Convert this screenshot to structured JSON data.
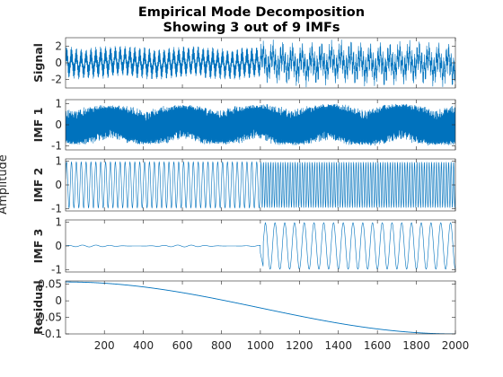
{
  "chart_data": {
    "type": "line",
    "title": "Empirical Mode Decomposition",
    "subtitle": "Showing 3 out of 9 IMFs",
    "ylabel": "Amplitude",
    "x_ticks": [
      200,
      400,
      600,
      800,
      1000,
      1200,
      1400,
      1600,
      1800,
      2000
    ],
    "xlim": [
      1,
      2000
    ],
    "line_color": "#0072bd",
    "grid": false,
    "panels": [
      {
        "name": "Signal",
        "ylim": [
          -3,
          3
        ],
        "yticks": [
          -2,
          0,
          2
        ],
        "description_points": {
          "segment_1": {
            "x_range": [
              1,
              1000
            ],
            "amplitude": 2.0
          },
          "segment_2": {
            "x_range": [
              1000,
              2000
            ],
            "amplitude": 3.0
          }
        }
      },
      {
        "name": "IMF 1",
        "ylim": [
          -1.2,
          1.2
        ],
        "yticks": [
          -1,
          0,
          1
        ],
        "description_points": {
          "segment_1": {
            "x_range": [
              1,
              1000
            ],
            "amplitude": 0.95
          },
          "segment_2": {
            "x_range": [
              1000,
              2000
            ],
            "amplitude": 1.0
          }
        }
      },
      {
        "name": "IMF 2",
        "ylim": [
          -1.1,
          1.1
        ],
        "yticks": [
          -1,
          0,
          1
        ],
        "description_points": {
          "segment_1": {
            "x_range": [
              1,
              1000
            ],
            "amplitude": 1.0,
            "cycles": 40
          },
          "segment_2": {
            "x_range": [
              1000,
              2000
            ],
            "amplitude": 1.0,
            "cycles": 80
          }
        }
      },
      {
        "name": "IMF 3",
        "ylim": [
          -1.1,
          1.1
        ],
        "yticks": [
          -1,
          0,
          1
        ],
        "description_points": {
          "segment_1": {
            "x_range": [
              1,
              1000
            ],
            "amplitude": 0.04
          },
          "segment_2": {
            "x_range": [
              1000,
              2000
            ],
            "amplitude": 1.0,
            "cycles": 20
          }
        }
      },
      {
        "name": "Residual",
        "ylim": [
          -0.1,
          0.06
        ],
        "yticks": [
          -0.1,
          -0.05,
          0,
          0.05
        ],
        "ytick_labels": [
          "-0.1",
          "-0.05",
          "0",
          "0.05"
        ],
        "curve": {
          "start": 0.057,
          "end": -0.1,
          "x_start": 1,
          "x_end": 2000
        }
      }
    ]
  }
}
